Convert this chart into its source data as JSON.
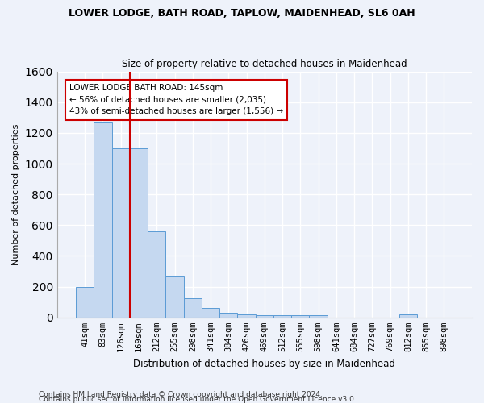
{
  "title1": "LOWER LODGE, BATH ROAD, TAPLOW, MAIDENHEAD, SL6 0AH",
  "title2": "Size of property relative to detached houses in Maidenhead",
  "xlabel": "Distribution of detached houses by size in Maidenhead",
  "ylabel": "Number of detached properties",
  "footnote1": "Contains HM Land Registry data © Crown copyright and database right 2024.",
  "footnote2": "Contains public sector information licensed under the Open Government Licence v3.0.",
  "categories": [
    "41sqm",
    "83sqm",
    "126sqm",
    "169sqm",
    "212sqm",
    "255sqm",
    "298sqm",
    "341sqm",
    "384sqm",
    "426sqm",
    "469sqm",
    "512sqm",
    "555sqm",
    "598sqm",
    "641sqm",
    "684sqm",
    "727sqm",
    "769sqm",
    "812sqm",
    "855sqm",
    "898sqm"
  ],
  "values": [
    200,
    1275,
    1100,
    1100,
    560,
    265,
    125,
    60,
    30,
    20,
    15,
    15,
    15,
    15,
    0,
    0,
    0,
    0,
    20,
    0,
    0
  ],
  "bar_color": "#c5d8f0",
  "bar_edge_color": "#5b9bd5",
  "ylim": [
    0,
    1600
  ],
  "yticks": [
    0,
    200,
    400,
    600,
    800,
    1000,
    1200,
    1400,
    1600
  ],
  "property_line_x": 2.5,
  "property_line_label": "LOWER LODGE BATH ROAD: 145sqm",
  "annotation_line2": "← 56% of detached houses are smaller (2,035)",
  "annotation_line3": "43% of semi-detached houses are larger (1,556) →",
  "bg_color": "#eef2fa",
  "grid_color": "#ffffff",
  "annotation_box_color": "#ffffff",
  "annotation_box_edge": "#cc0000",
  "property_line_color": "#cc0000"
}
